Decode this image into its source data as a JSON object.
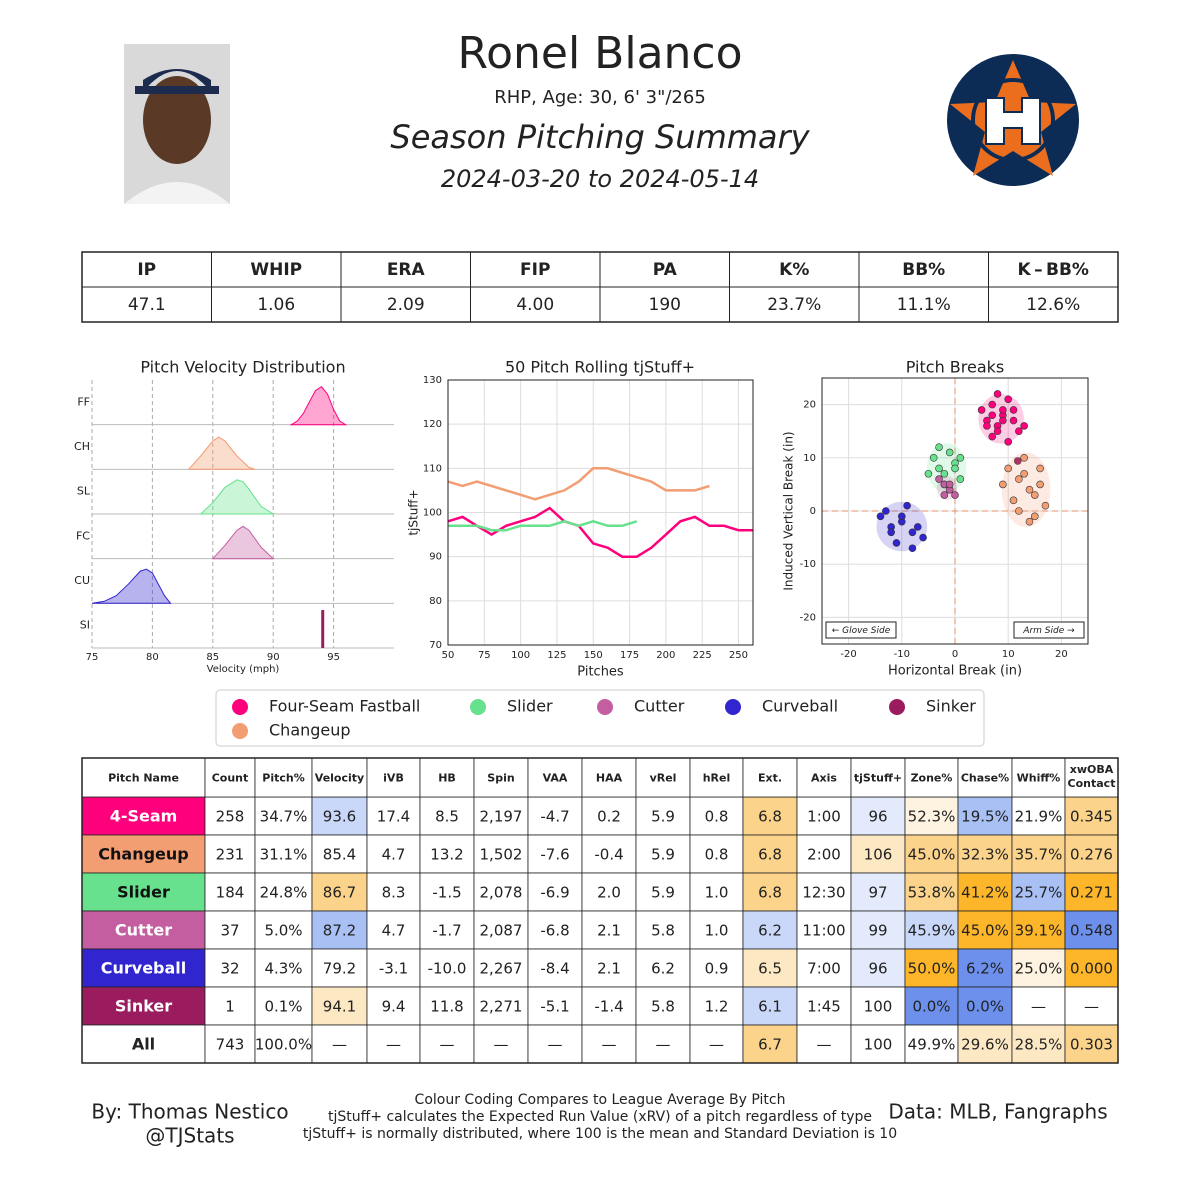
{
  "header": {
    "name": "Ronel Blanco",
    "bio": "RHP, Age: 30, 6' 3\"/265",
    "subtitle": "Season Pitching Summary",
    "dates": "2024-03-20 to 2024-05-14"
  },
  "stats_table": {
    "columns": [
      "IP",
      "WHIP",
      "ERA",
      "FIP",
      "PA",
      "K%",
      "BB%",
      "K – BB%"
    ],
    "values": [
      "47.1",
      "1.06",
      "2.09",
      "4.00",
      "190",
      "23.7%",
      "11.1%",
      "12.6%"
    ]
  },
  "chart_data": [
    {
      "type": "density",
      "title": "Pitch Velocity Distribution",
      "xlabel": "Velocity (mph)",
      "categories": [
        "FF",
        "CH",
        "SL",
        "FC",
        "CU",
        "SI"
      ],
      "xlim": [
        75,
        100
      ],
      "xticks": [
        75,
        80,
        85,
        90,
        95
      ],
      "grid": true,
      "series": [
        {
          "color": "#ff007d",
          "x": [
            91.5,
            92,
            92.5,
            93,
            93.5,
            94,
            94.5,
            95,
            95.5,
            96
          ],
          "values": [
            0,
            0.1,
            0.3,
            0.6,
            0.9,
            1,
            0.8,
            0.4,
            0.1,
            0
          ]
        },
        {
          "color": "#f39d73",
          "x": [
            83,
            84,
            85,
            85.5,
            86,
            87,
            88,
            88.5
          ],
          "values": [
            0,
            0.35,
            0.75,
            0.85,
            0.75,
            0.35,
            0.05,
            0
          ]
        },
        {
          "color": "#67e18d",
          "x": [
            84,
            85,
            86,
            87,
            87.5,
            88,
            89,
            90
          ],
          "values": [
            0,
            0.3,
            0.7,
            0.9,
            0.85,
            0.65,
            0.2,
            0
          ]
        },
        {
          "color": "#c45ea0",
          "x": [
            85,
            86,
            87,
            87.5,
            88,
            89,
            90
          ],
          "values": [
            0,
            0.35,
            0.75,
            0.85,
            0.75,
            0.3,
            0
          ]
        },
        {
          "color": "#3025ce",
          "x": [
            75,
            76,
            77,
            78,
            79,
            79.5,
            80,
            81,
            81.5
          ],
          "values": [
            0,
            0.05,
            0.2,
            0.5,
            0.85,
            0.9,
            0.8,
            0.2,
            0
          ]
        },
        {
          "color": "#9a1b5e",
          "x": [
            94.1
          ],
          "values": [
            1
          ]
        }
      ]
    },
    {
      "type": "line",
      "title": "50 Pitch Rolling tjStuff+",
      "xlabel": "Pitches",
      "ylabel": "tjStuff+",
      "xlim": [
        50,
        260
      ],
      "ylim": [
        70,
        130
      ],
      "xticks": [
        50,
        75,
        100,
        125,
        150,
        175,
        200,
        225,
        250
      ],
      "yticks": [
        70,
        80,
        90,
        100,
        110,
        120,
        130
      ],
      "grid": true,
      "series": [
        {
          "color": "#f39d73",
          "x": [
            50,
            60,
            70,
            80,
            90,
            100,
            110,
            120,
            130,
            140,
            150,
            160,
            170,
            180,
            190,
            200,
            210,
            220,
            230
          ],
          "values": [
            107,
            106,
            107,
            106,
            105,
            104,
            103,
            104,
            105,
            107,
            110,
            110,
            109,
            108,
            107,
            105,
            105,
            105,
            106
          ]
        },
        {
          "color": "#ff007d",
          "x": [
            50,
            60,
            70,
            80,
            90,
            100,
            110,
            120,
            130,
            140,
            150,
            160,
            170,
            180,
            190,
            200,
            210,
            220,
            230,
            240,
            250,
            260
          ],
          "values": [
            98,
            99,
            97,
            95,
            97,
            98,
            99,
            101,
            98,
            97,
            93,
            92,
            90,
            90,
            92,
            95,
            98,
            99,
            97,
            97,
            96,
            96
          ]
        },
        {
          "color": "#67e18d",
          "x": [
            50,
            60,
            70,
            80,
            90,
            100,
            110,
            120,
            130,
            140,
            150,
            160,
            170,
            180
          ],
          "values": [
            97,
            97,
            97,
            96,
            96,
            97,
            97,
            97,
            98,
            97,
            98,
            97,
            97,
            98
          ]
        }
      ]
    },
    {
      "type": "scatter",
      "title": "Pitch Breaks",
      "xlabel": "Horizontal Break (in)",
      "ylabel": "Induced Vertical Break (in)",
      "annotations": [
        "← Glove Side",
        "Arm Side →"
      ],
      "xlim": [
        -25,
        25
      ],
      "ylim": [
        -25,
        25
      ],
      "xticks": [
        -20,
        -10,
        0,
        10,
        20
      ],
      "yticks": [
        -20,
        -10,
        0,
        10,
        20
      ],
      "grid": true,
      "series": [
        {
          "name": "Four-Seam Fastball",
          "color": "#ff007d",
          "x": [
            5,
            6,
            7,
            8,
            9,
            10,
            11,
            12,
            7,
            9,
            6,
            10,
            8,
            11,
            9,
            13,
            7,
            8
          ],
          "values": [
            19,
            17,
            20,
            16,
            18,
            21,
            17,
            15,
            14,
            19,
            16,
            13,
            22,
            19,
            17,
            16,
            18,
            15
          ]
        },
        {
          "name": "Slider",
          "color": "#67e18d",
          "x": [
            -4,
            -3,
            -2,
            -1,
            0,
            1,
            -2,
            -3,
            0,
            -1,
            -5,
            1
          ],
          "values": [
            10,
            8,
            7,
            11,
            9,
            6,
            5,
            12,
            8,
            4,
            7,
            10
          ]
        },
        {
          "name": "Cutter",
          "color": "#c45ea0",
          "x": [
            -2,
            -1,
            0,
            -3,
            -1,
            -2
          ],
          "values": [
            5,
            4,
            3,
            6,
            5,
            3
          ]
        },
        {
          "name": "Curveball",
          "color": "#3025ce",
          "x": [
            -14,
            -12,
            -10,
            -8,
            -6,
            -13,
            -11,
            -9,
            -7,
            -12,
            -10,
            -8
          ],
          "values": [
            -1,
            -3,
            -2,
            -4,
            -5,
            0,
            -6,
            1,
            -3,
            -4,
            -1,
            -7
          ]
        },
        {
          "name": "Sinker",
          "color": "#9a1b5e",
          "x": [
            11.8
          ],
          "values": [
            9.4
          ]
        },
        {
          "name": "Changeup",
          "color": "#f39d73",
          "x": [
            10,
            12,
            14,
            16,
            11,
            13,
            15,
            17,
            12,
            14,
            9,
            16,
            13,
            15
          ],
          "values": [
            8,
            6,
            4,
            5,
            2,
            7,
            3,
            1,
            0,
            -2,
            5,
            8,
            10,
            -1
          ]
        }
      ]
    }
  ],
  "pitch_table": {
    "columns": [
      "Pitch Name",
      "Count",
      "Pitch%",
      "Velocity",
      "iVB",
      "HB",
      "Spin",
      "VAA",
      "HAA",
      "vRel",
      "hRel",
      "Ext.",
      "Axis",
      "tjStuff+",
      "Zone%",
      "Chase%",
      "Whiff%",
      [
        "xwOBA",
        "Contact"
      ]
    ],
    "rows": [
      {
        "cells": [
          "4-Seam",
          "258",
          "34.7%",
          "93.6",
          "17.4",
          "8.5",
          "2,197",
          "-4.7",
          "0.2",
          "5.9",
          "0.8",
          "6.8",
          "1:00",
          "96",
          "52.3%",
          "19.5%",
          "21.9%",
          "0.345"
        ],
        "colors": [
          "#ff007d",
          null,
          null,
          "#c9d7f8",
          null,
          null,
          null,
          null,
          null,
          null,
          null,
          "#fbd38a",
          null,
          "#e3eafb",
          "#fdf3e0",
          "#a9c0f4",
          null,
          "#fbd38a"
        ]
      },
      {
        "cells": [
          "Changeup",
          "231",
          "31.1%",
          "85.4",
          "4.7",
          "13.2",
          "1,502",
          "-7.6",
          "-0.4",
          "5.9",
          "0.8",
          "6.8",
          "2:00",
          "106",
          "45.0%",
          "32.3%",
          "35.7%",
          "0.276"
        ],
        "colors": [
          "#f39d73",
          null,
          null,
          null,
          null,
          null,
          null,
          null,
          null,
          null,
          null,
          "#fbd38a",
          null,
          "#fde8c4",
          "#fbd38a",
          "#fbd38a",
          "#fbd38a",
          "#fbd38a"
        ]
      },
      {
        "cells": [
          "Slider",
          "184",
          "24.8%",
          "86.7",
          "8.3",
          "-1.5",
          "2,078",
          "-6.9",
          "2.0",
          "5.9",
          "1.0",
          "6.8",
          "12:30",
          "97",
          "53.8%",
          "41.2%",
          "25.7%",
          "0.271"
        ],
        "colors": [
          "#67e18d",
          null,
          null,
          "#fbd38a",
          null,
          null,
          null,
          null,
          null,
          null,
          null,
          "#fbd38a",
          null,
          "#e3eafb",
          "#fbd38a",
          "#fdb52a",
          "#a9c0f4",
          "#fdb52a"
        ]
      },
      {
        "cells": [
          "Cutter",
          "37",
          "5.0%",
          "87.2",
          "4.7",
          "-1.7",
          "2,087",
          "-6.8",
          "2.1",
          "5.8",
          "1.0",
          "6.2",
          "11:00",
          "99",
          "45.9%",
          "45.0%",
          "39.1%",
          "0.548"
        ],
        "colors": [
          "#c45ea0",
          null,
          null,
          "#a9c0f4",
          null,
          null,
          null,
          null,
          null,
          null,
          null,
          "#c9d7f8",
          null,
          "#e3eafb",
          "#c9d7f8",
          "#fdb52a",
          "#fdb52a",
          "#6d90ec"
        ]
      },
      {
        "cells": [
          "Curveball",
          "32",
          "4.3%",
          "79.2",
          "-3.1",
          "-10.0",
          "2,267",
          "-8.4",
          "2.1",
          "6.2",
          "0.9",
          "6.5",
          "7:00",
          "96",
          "50.0%",
          "6.2%",
          "25.0%",
          "0.000"
        ],
        "colors": [
          "#3025ce",
          null,
          null,
          null,
          null,
          null,
          null,
          null,
          null,
          null,
          null,
          "#fde8c4",
          null,
          "#e3eafb",
          "#fdb52a",
          "#6d90ec",
          "#fdf3e0",
          "#fdb52a"
        ]
      },
      {
        "cells": [
          "Sinker",
          "1",
          "0.1%",
          "94.1",
          "9.4",
          "11.8",
          "2,271",
          "-5.1",
          "-1.4",
          "5.8",
          "1.2",
          "6.1",
          "1:45",
          "100",
          "0.0%",
          "0.0%",
          "—",
          "—"
        ],
        "colors": [
          "#9a1b5e",
          null,
          null,
          "#fde8c4",
          null,
          null,
          null,
          null,
          null,
          null,
          null,
          "#c9d7f8",
          null,
          null,
          "#6d90ec",
          "#6d90ec",
          null,
          null
        ]
      },
      {
        "cells": [
          "All",
          "743",
          "100.0%",
          "—",
          "—",
          "—",
          "—",
          "—",
          "—",
          "—",
          "—",
          "6.7",
          "—",
          "100",
          "49.9%",
          "29.6%",
          "28.5%",
          "0.303"
        ],
        "colors": [
          null,
          null,
          null,
          null,
          null,
          null,
          null,
          null,
          null,
          null,
          null,
          "#fbd38a",
          null,
          null,
          null,
          "#fde8c4",
          "#fde8c4",
          "#fbd38a"
        ]
      }
    ]
  },
  "footer": {
    "author": "By: Thomas Nestico",
    "handle": "@TJStats",
    "notes": [
      "Colour Coding Compares to League Average By Pitch",
      "tjStuff+ calculates the Expected Run Value (xRV) of a pitch regardless of type",
      "tjStuff+ is normally distributed, where 100 is the mean and Standard Deviation is 10"
    ],
    "source": "Data: MLB, Fangraphs"
  }
}
